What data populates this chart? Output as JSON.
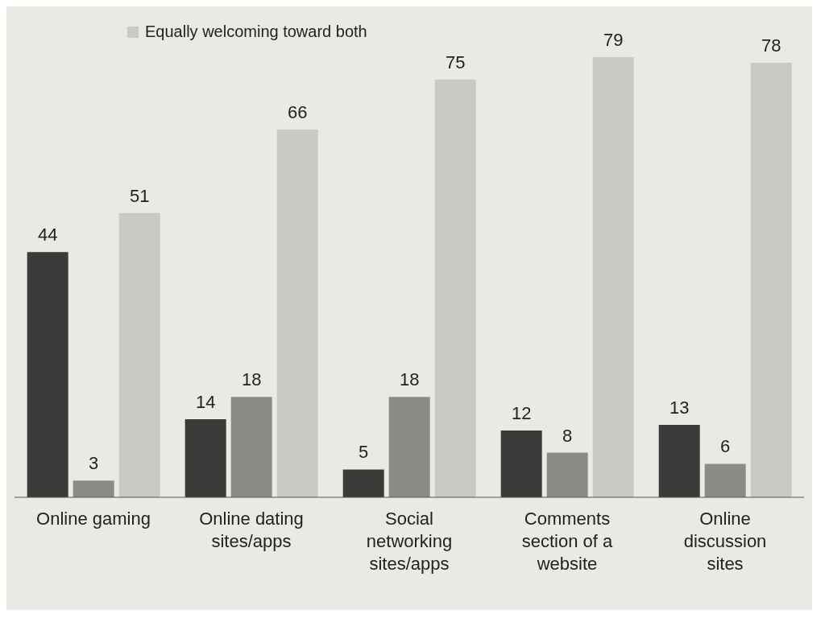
{
  "chart_data": {
    "type": "bar",
    "categories": [
      "Online gaming",
      "Online dating sites/apps",
      "Social networking sites/apps",
      "Comments section of a website",
      "Online discussion sites"
    ],
    "series": [
      {
        "color": "#3b3b39",
        "values": [
          44,
          14,
          5,
          12,
          13
        ]
      },
      {
        "color": "#8c8b87",
        "values": [
          3,
          18,
          18,
          8,
          6
        ]
      },
      {
        "name": "Equally welcoming toward both",
        "color": "#cbc9c3",
        "values": [
          51,
          66,
          75,
          79,
          78
        ]
      }
    ],
    "data_labels": true,
    "legend": "top left",
    "relative": false
  }
}
